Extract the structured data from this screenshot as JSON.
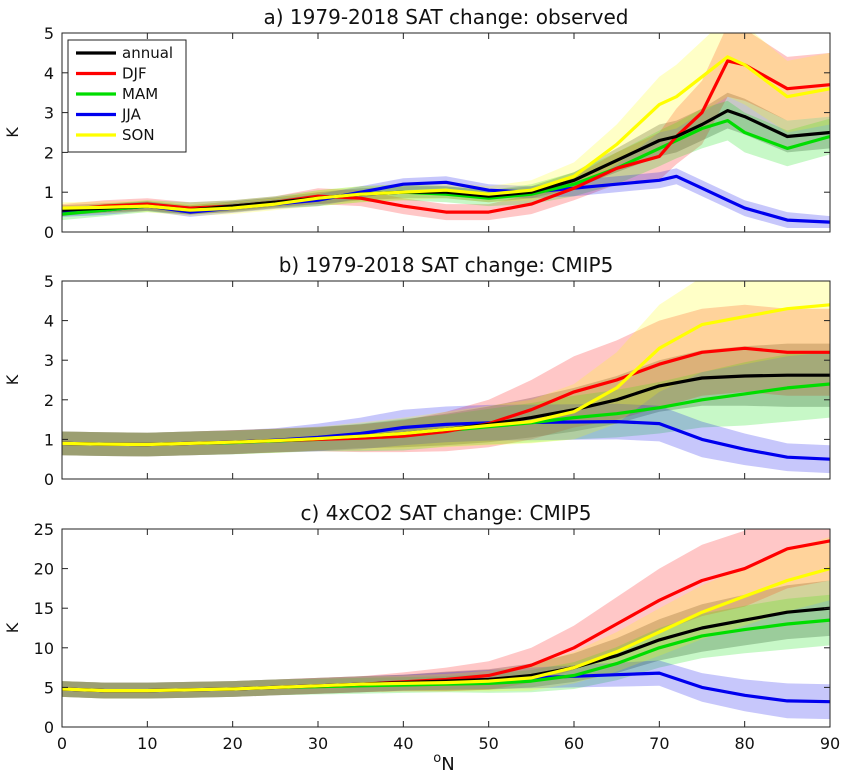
{
  "colors": {
    "annual": "#000000",
    "DJF": "#ff0000",
    "MAM": "#00dd00",
    "JJA": "#0000ee",
    "SON": "#ffff00"
  },
  "xlabel_sup": "o",
  "xlabel_main": "N",
  "chart_data": [
    {
      "type": "line",
      "title": "a) 1979-2018 SAT change: observed",
      "xlabel": "",
      "ylabel": "K",
      "xlim": [
        0,
        90
      ],
      "ylim": [
        0,
        5
      ],
      "xticks": [
        "0",
        "10",
        "20",
        "30",
        "40",
        "50",
        "60",
        "70",
        "80",
        "90"
      ],
      "yticks": [
        "0",
        "1",
        "2",
        "3",
        "4",
        "5"
      ],
      "grid": false,
      "legend": "top-left",
      "x": [
        0,
        5,
        10,
        15,
        20,
        25,
        30,
        35,
        40,
        45,
        50,
        55,
        60,
        65,
        70,
        72,
        75,
        78,
        80,
        85,
        90
      ],
      "series": [
        {
          "name": "annual",
          "values": [
            0.55,
            0.6,
            0.65,
            0.55,
            0.65,
            0.75,
            0.85,
            0.95,
            1.0,
            1.0,
            0.9,
            1.0,
            1.3,
            1.8,
            2.3,
            2.4,
            2.7,
            3.05,
            2.9,
            2.4,
            2.5
          ],
          "band": [
            0.12,
            0.12,
            0.12,
            0.12,
            0.12,
            0.12,
            0.15,
            0.15,
            0.15,
            0.15,
            0.15,
            0.15,
            0.2,
            0.3,
            0.4,
            0.4,
            0.4,
            0.45,
            0.45,
            0.4,
            0.4
          ]
        },
        {
          "name": "DJF",
          "values": [
            0.55,
            0.65,
            0.7,
            0.6,
            0.65,
            0.75,
            0.9,
            0.85,
            0.65,
            0.5,
            0.5,
            0.7,
            1.1,
            1.6,
            1.9,
            2.4,
            3.0,
            4.3,
            4.2,
            3.6,
            3.7
          ],
          "band": [
            0.15,
            0.15,
            0.15,
            0.15,
            0.15,
            0.15,
            0.2,
            0.2,
            0.2,
            0.2,
            0.2,
            0.25,
            0.3,
            0.4,
            0.6,
            0.7,
            0.8,
            0.9,
            0.9,
            0.8,
            0.8
          ]
        },
        {
          "name": "MAM",
          "values": [
            0.45,
            0.55,
            0.65,
            0.6,
            0.65,
            0.75,
            0.85,
            0.95,
            1.0,
            0.95,
            0.85,
            0.95,
            1.2,
            1.6,
            2.1,
            2.3,
            2.6,
            2.8,
            2.5,
            2.1,
            2.4
          ],
          "band": [
            0.15,
            0.15,
            0.15,
            0.15,
            0.15,
            0.15,
            0.2,
            0.2,
            0.2,
            0.2,
            0.2,
            0.25,
            0.3,
            0.4,
            0.45,
            0.45,
            0.5,
            0.5,
            0.5,
            0.45,
            0.45
          ]
        },
        {
          "name": "JJA",
          "values": [
            0.5,
            0.55,
            0.65,
            0.5,
            0.6,
            0.7,
            0.8,
            1.0,
            1.2,
            1.25,
            1.05,
            1.0,
            1.1,
            1.2,
            1.3,
            1.4,
            1.1,
            0.8,
            0.6,
            0.3,
            0.25
          ],
          "band": [
            0.12,
            0.12,
            0.12,
            0.12,
            0.12,
            0.12,
            0.15,
            0.15,
            0.15,
            0.15,
            0.15,
            0.15,
            0.2,
            0.2,
            0.2,
            0.2,
            0.2,
            0.2,
            0.2,
            0.2,
            0.15
          ]
        },
        {
          "name": "SON",
          "values": [
            0.6,
            0.62,
            0.65,
            0.55,
            0.6,
            0.7,
            0.85,
            0.95,
            1.0,
            1.05,
            0.95,
            1.05,
            1.4,
            2.2,
            3.2,
            3.4,
            3.9,
            4.4,
            4.2,
            3.4,
            3.6
          ],
          "band": [
            0.15,
            0.15,
            0.15,
            0.15,
            0.15,
            0.15,
            0.2,
            0.2,
            0.2,
            0.2,
            0.2,
            0.25,
            0.35,
            0.5,
            0.7,
            0.8,
            0.9,
            1.0,
            1.0,
            0.9,
            0.9
          ]
        }
      ]
    },
    {
      "type": "line",
      "title": "b) 1979-2018 SAT change: CMIP5",
      "xlabel": "",
      "ylabel": "K",
      "xlim": [
        0,
        90
      ],
      "ylim": [
        0,
        5
      ],
      "xticks": [
        "0",
        "10",
        "20",
        "30",
        "40",
        "50",
        "60",
        "70",
        "80",
        "90"
      ],
      "yticks": [
        "0",
        "1",
        "2",
        "3",
        "4",
        "5"
      ],
      "grid": false,
      "x": [
        0,
        5,
        10,
        15,
        20,
        25,
        30,
        35,
        40,
        45,
        50,
        55,
        60,
        65,
        70,
        75,
        80,
        85,
        90
      ],
      "series": [
        {
          "name": "annual",
          "values": [
            0.9,
            0.88,
            0.87,
            0.9,
            0.93,
            0.97,
            1.02,
            1.08,
            1.15,
            1.25,
            1.38,
            1.55,
            1.75,
            2.0,
            2.35,
            2.55,
            2.6,
            2.62,
            2.62
          ],
          "band": [
            0.3,
            0.3,
            0.3,
            0.3,
            0.3,
            0.3,
            0.3,
            0.3,
            0.35,
            0.4,
            0.45,
            0.5,
            0.55,
            0.6,
            0.65,
            0.7,
            0.75,
            0.8,
            0.8
          ]
        },
        {
          "name": "DJF",
          "values": [
            0.9,
            0.88,
            0.87,
            0.9,
            0.93,
            0.97,
            1.0,
            1.03,
            1.08,
            1.2,
            1.4,
            1.75,
            2.2,
            2.5,
            2.9,
            3.2,
            3.3,
            3.2,
            3.2
          ],
          "band": [
            0.3,
            0.3,
            0.3,
            0.3,
            0.3,
            0.3,
            0.3,
            0.35,
            0.4,
            0.5,
            0.6,
            0.75,
            0.9,
            1.0,
            1.1,
            1.1,
            1.1,
            1.1,
            1.1
          ]
        },
        {
          "name": "MAM",
          "values": [
            0.9,
            0.88,
            0.87,
            0.9,
            0.92,
            0.96,
            1.0,
            1.05,
            1.12,
            1.22,
            1.32,
            1.42,
            1.55,
            1.65,
            1.8,
            2.0,
            2.15,
            2.3,
            2.4
          ],
          "band": [
            0.3,
            0.3,
            0.3,
            0.3,
            0.3,
            0.3,
            0.3,
            0.35,
            0.4,
            0.4,
            0.45,
            0.5,
            0.55,
            0.6,
            0.65,
            0.7,
            0.8,
            0.85,
            0.85
          ]
        },
        {
          "name": "JJA",
          "values": [
            0.9,
            0.88,
            0.87,
            0.9,
            0.93,
            0.98,
            1.05,
            1.15,
            1.3,
            1.38,
            1.42,
            1.43,
            1.44,
            1.45,
            1.4,
            1.0,
            0.75,
            0.55,
            0.5
          ],
          "band": [
            0.3,
            0.3,
            0.3,
            0.3,
            0.3,
            0.3,
            0.35,
            0.4,
            0.45,
            0.45,
            0.45,
            0.45,
            0.45,
            0.45,
            0.45,
            0.45,
            0.4,
            0.35,
            0.35
          ]
        },
        {
          "name": "SON",
          "values": [
            0.9,
            0.88,
            0.87,
            0.9,
            0.93,
            0.97,
            1.02,
            1.08,
            1.15,
            1.25,
            1.35,
            1.45,
            1.7,
            2.3,
            3.3,
            3.9,
            4.1,
            4.3,
            4.4
          ],
          "band": [
            0.3,
            0.3,
            0.3,
            0.3,
            0.3,
            0.3,
            0.3,
            0.35,
            0.4,
            0.45,
            0.5,
            0.55,
            0.7,
            0.9,
            1.1,
            1.2,
            1.2,
            1.2,
            1.2
          ]
        }
      ]
    },
    {
      "type": "line",
      "title": "c) 4xCO2 SAT change: CMIP5",
      "xlabel": "oN",
      "ylabel": "K",
      "xlim": [
        0,
        90
      ],
      "ylim": [
        0,
        25
      ],
      "xticks": [
        "0",
        "10",
        "20",
        "30",
        "40",
        "50",
        "60",
        "70",
        "80",
        "90"
      ],
      "yticks": [
        "0",
        "5",
        "10",
        "15",
        "20",
        "25"
      ],
      "grid": false,
      "x": [
        0,
        5,
        10,
        15,
        20,
        25,
        30,
        35,
        40,
        45,
        50,
        55,
        60,
        65,
        70,
        75,
        80,
        85,
        90
      ],
      "series": [
        {
          "name": "annual",
          "values": [
            4.8,
            4.6,
            4.6,
            4.7,
            4.8,
            5.0,
            5.2,
            5.4,
            5.6,
            5.8,
            6.0,
            6.5,
            7.5,
            9.0,
            11.0,
            12.5,
            13.5,
            14.5,
            15.0
          ],
          "band": [
            1.0,
            1.0,
            1.0,
            1.0,
            1.0,
            1.0,
            1.0,
            1.0,
            1.0,
            1.2,
            1.3,
            1.5,
            1.8,
            2.2,
            2.6,
            3.0,
            3.2,
            3.4,
            3.5
          ]
        },
        {
          "name": "DJF",
          "values": [
            4.8,
            4.6,
            4.6,
            4.7,
            4.8,
            5.0,
            5.2,
            5.4,
            5.7,
            6.0,
            6.5,
            7.8,
            10.0,
            13.0,
            16.0,
            18.5,
            20.0,
            22.5,
            23.5
          ],
          "band": [
            1.0,
            1.0,
            1.0,
            1.0,
            1.0,
            1.0,
            1.0,
            1.0,
            1.2,
            1.5,
            1.8,
            2.2,
            2.8,
            3.4,
            4.0,
            4.5,
            4.8,
            5.0,
            5.0
          ]
        },
        {
          "name": "MAM",
          "values": [
            4.8,
            4.6,
            4.6,
            4.7,
            4.8,
            5.0,
            5.1,
            5.2,
            5.3,
            5.4,
            5.5,
            5.8,
            6.5,
            8.0,
            10.0,
            11.5,
            12.3,
            13.0,
            13.5
          ],
          "band": [
            1.0,
            1.0,
            1.0,
            1.0,
            1.0,
            1.0,
            1.0,
            1.0,
            1.0,
            1.0,
            1.2,
            1.4,
            1.7,
            2.1,
            2.5,
            2.8,
            3.0,
            3.2,
            3.2
          ]
        },
        {
          "name": "JJA",
          "values": [
            4.8,
            4.6,
            4.6,
            4.7,
            4.8,
            5.0,
            5.2,
            5.4,
            5.6,
            5.8,
            6.0,
            6.2,
            6.4,
            6.6,
            6.8,
            5.0,
            4.0,
            3.3,
            3.2
          ],
          "band": [
            1.0,
            1.0,
            1.0,
            1.0,
            1.0,
            1.0,
            1.0,
            1.0,
            1.0,
            1.1,
            1.2,
            1.3,
            1.4,
            1.5,
            1.6,
            1.8,
            2.0,
            2.2,
            2.2
          ]
        },
        {
          "name": "SON",
          "values": [
            4.8,
            4.6,
            4.6,
            4.7,
            4.8,
            5.0,
            5.2,
            5.4,
            5.5,
            5.6,
            5.8,
            6.2,
            7.5,
            9.5,
            12.0,
            14.5,
            16.5,
            18.5,
            20.0
          ],
          "band": [
            1.0,
            1.0,
            1.0,
            1.0,
            1.0,
            1.0,
            1.0,
            1.0,
            1.0,
            1.1,
            1.3,
            1.6,
            2.0,
            2.5,
            3.0,
            3.4,
            3.7,
            3.9,
            4.0
          ]
        }
      ]
    }
  ]
}
